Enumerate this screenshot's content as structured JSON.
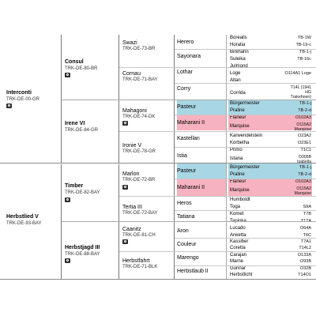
{
  "colors": {
    "blue": "#a9d6e4",
    "pink": "#f6b2c0"
  },
  "gen1": [
    {
      "name": "Interconti",
      "reg": "TRK-DE-00-GR"
    },
    {
      "name": "Herbstlied V",
      "reg": "TRK-DE-93-BAY"
    }
  ],
  "gen2": [
    {
      "name": "Consul",
      "reg": "TRK-DE-80-BR"
    },
    {
      "name": "Irene VI",
      "reg": "TRK-DE-84-GR"
    },
    {
      "name": "Timber",
      "reg": "TRK-DE-82-BAY"
    },
    {
      "name": "Herbstjagd III",
      "reg": "TRK-DE-88-BAY"
    }
  ],
  "gen3": [
    {
      "name": "Swazi",
      "reg": "TRK-DE-73-BR"
    },
    {
      "name": "Cornau",
      "reg": "TRK-DE-71-BAY"
    },
    {
      "name": "Mahagoni",
      "reg": "TRK-DE-74-DK"
    },
    {
      "name": "Ironie V",
      "reg": "TRK-DE-78-GR"
    },
    {
      "name": "Marlon",
      "reg": "TRK-DE-72-BR"
    },
    {
      "name": "Tertia III",
      "reg": "TRK-DE-72-BAY"
    },
    {
      "name": "Caanitz",
      "reg": "TRK-DE-81-CH"
    },
    {
      "name": "Herbstfahrt",
      "reg": "TRK-DE-71-BLK"
    }
  ],
  "gen4": [
    {
      "name": "Herero"
    },
    {
      "name": "Sayonara"
    },
    {
      "name": "Lothar"
    },
    {
      "name": "Corry"
    },
    {
      "name": "Pasteur"
    },
    {
      "name": "Maharani II"
    },
    {
      "name": "Kastellan"
    },
    {
      "name": "Istia"
    },
    {
      "name": "Pasteur"
    },
    {
      "name": "Maharani II"
    },
    {
      "name": "Heros"
    },
    {
      "name": "Tatiana"
    },
    {
      "name": "Aron"
    },
    {
      "name": "Couleur"
    },
    {
      "name": "Marengo"
    },
    {
      "name": "Herbstlaub II"
    }
  ],
  "gen5": [
    {
      "name": "Borealis",
      "code": "TB-1W"
    },
    {
      "name": "Horatia",
      "code": "TB-19-c"
    },
    {
      "name": "Birkhahn",
      "code": "TB-1-j"
    },
    {
      "name": "Suleika",
      "code": "TB-16c"
    },
    {
      "name": "Julmond",
      "code": ""
    },
    {
      "name": "Loge",
      "code": "O114A1 Loge"
    },
    {
      "name": "Altan",
      "code": ""
    },
    {
      "name": "Corrida",
      "code": "T14L (1941 HG Trakehnen)"
    },
    {
      "name": "Bürgermeister",
      "code": "TB-1-j"
    },
    {
      "name": "Praline",
      "code": "TB-2-d"
    },
    {
      "name": "Flaneur",
      "code": "O102A3"
    },
    {
      "name": "Marquise",
      "code": "O115A2 Marquise"
    },
    {
      "name": "Karwendelstein",
      "code": "O23A2"
    },
    {
      "name": "Korbetha",
      "code": "O23E1"
    },
    {
      "name": "Primo",
      "code": "T1C1"
    },
    {
      "name": "Istana",
      "code": "O305B Isabella"
    },
    {
      "name": "Bürgermeister",
      "code": "TB-1-j"
    },
    {
      "name": "Praline",
      "code": "TB-2-d"
    },
    {
      "name": "Flaneur",
      "code": "O102A3"
    },
    {
      "name": "Marquise",
      "code": "O115A2 Marquise"
    },
    {
      "name": "Humboldt",
      "code": ""
    },
    {
      "name": "Toga",
      "code": "S9A"
    },
    {
      "name": "Komet",
      "code": "T7B"
    },
    {
      "name": "Tapioka",
      "code": "T17A"
    },
    {
      "name": "Lucado",
      "code": "O64A"
    },
    {
      "name": "Arwetta",
      "code": "T6C"
    },
    {
      "name": "Kassiber",
      "code": "T7A1"
    },
    {
      "name": "Coretta",
      "code": "T14L2"
    },
    {
      "name": "Carajan",
      "code": "O133A"
    },
    {
      "name": "Marne",
      "code": "O93B"
    },
    {
      "name": "Gunnar",
      "code": "O32B"
    },
    {
      "name": "Herbstlicht",
      "code": "T14O1"
    }
  ]
}
